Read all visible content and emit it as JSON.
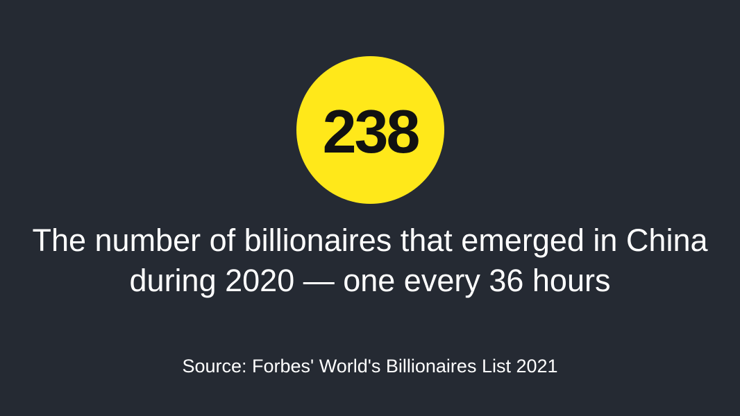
{
  "stat": {
    "value": "238"
  },
  "headline": {
    "line1": "The number of billionaires that emerged in China",
    "line2": "during 2020 — one every 36 hours"
  },
  "source": {
    "text": "Source: Forbes' World's Billionaires List 2021"
  },
  "colors": {
    "background": "#252a33",
    "accent": "#ffe81a",
    "text": "#ffffff",
    "stat_text": "#111111"
  }
}
